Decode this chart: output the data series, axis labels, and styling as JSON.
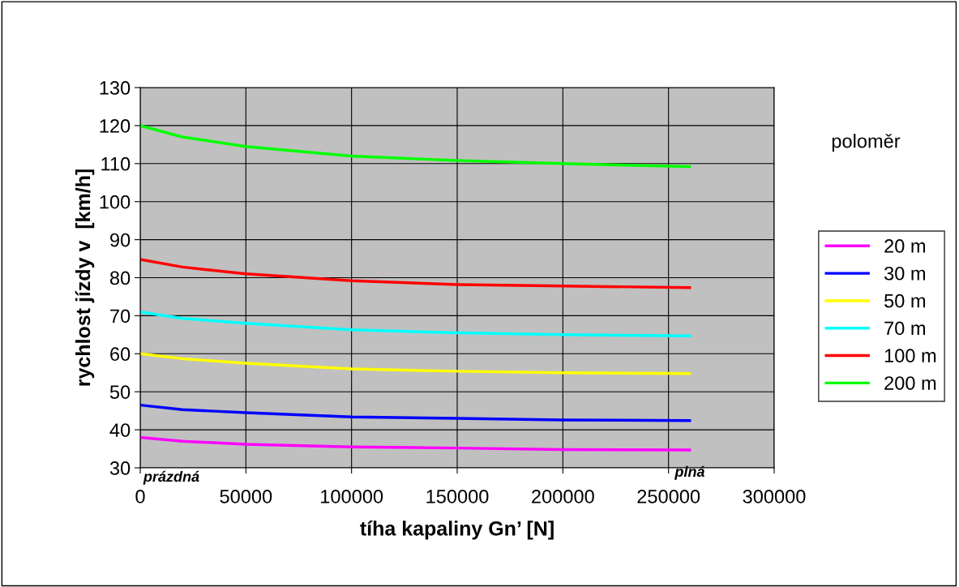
{
  "chart_data": {
    "type": "line",
    "xlabel": "tíha kapaliny Gn’ [N]",
    "ylabel": "rychlost jízdy v  [km/h]",
    "legend_title": "poloměr",
    "x": [
      0,
      20000,
      50000,
      100000,
      150000,
      200000,
      260000
    ],
    "series": [
      {
        "name": "20 m",
        "color": "#ff00ff",
        "values": [
          38,
          37,
          36.2,
          35.5,
          35.2,
          34.8,
          34.7
        ]
      },
      {
        "name": "30 m",
        "color": "#0000ff",
        "values": [
          46.5,
          45.3,
          44.5,
          43.4,
          43,
          42.6,
          42.4
        ]
      },
      {
        "name": "50 m",
        "color": "#ffff00",
        "values": [
          60,
          58.7,
          57.5,
          56,
          55.4,
          55,
          54.8
        ]
      },
      {
        "name": "70 m",
        "color": "#00ffff",
        "values": [
          71,
          69.3,
          68,
          66.3,
          65.5,
          65,
          64.7
        ]
      },
      {
        "name": "100 m",
        "color": "#ff0000",
        "values": [
          84.8,
          82.8,
          81,
          79.2,
          78.2,
          77.8,
          77.4
        ]
      },
      {
        "name": "200 m",
        "color": "#00ff00",
        "values": [
          120,
          117,
          114.5,
          112,
          110.8,
          110,
          109.2
        ]
      }
    ],
    "xlim": [
      0,
      300000
    ],
    "xticks": [
      0,
      50000,
      100000,
      150000,
      200000,
      250000,
      300000
    ],
    "ylim": [
      30,
      130
    ],
    "yticks": [
      30,
      40,
      50,
      60,
      70,
      80,
      90,
      100,
      110,
      120,
      130
    ],
    "annotations": [
      "prázdná",
      "plná"
    ],
    "grid": true,
    "legend": "right",
    "marker": "none",
    "line_style": "solid"
  }
}
